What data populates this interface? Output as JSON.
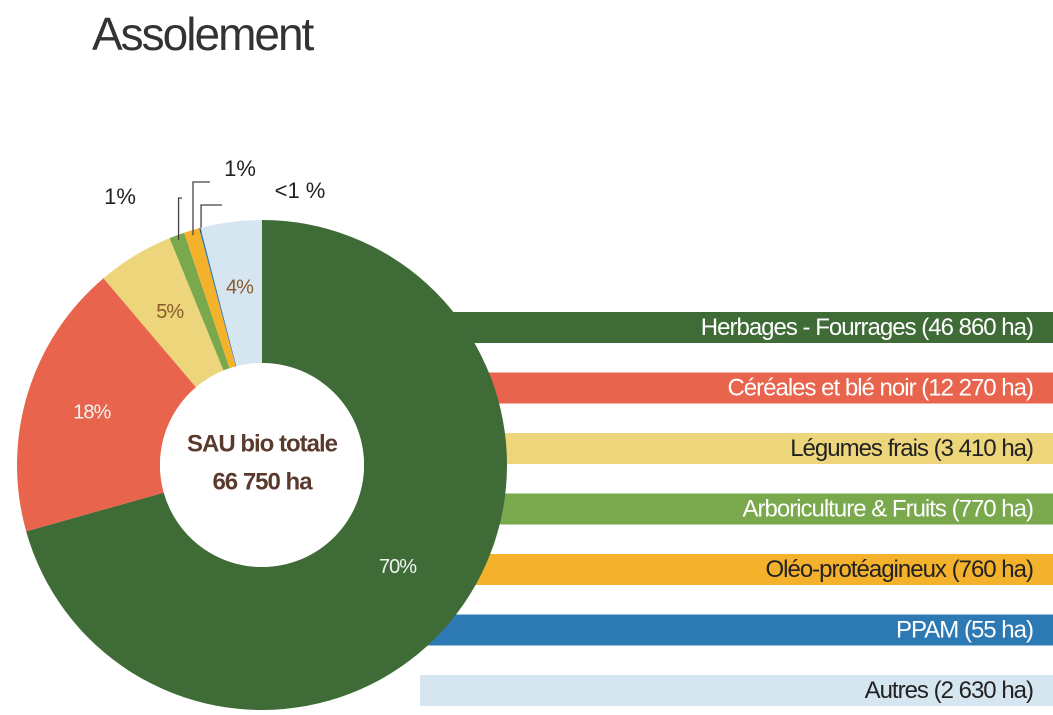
{
  "chart_data": {
    "type": "pie",
    "donut": true,
    "title": "Assolement",
    "center_label": [
      "SAU bio totale",
      "66 750 ha"
    ],
    "categories": [
      "Herbages - Fourrages (46 860 ha)",
      "Céréales et blé noir (12 270 ha)",
      "Légumes frais (3 410 ha)",
      "Arboriculture & Fruits (770 ha)",
      "Oléo-protéagineux (760 ha)",
      "PPAM (55 ha)",
      "Autres (2 630 ha)"
    ],
    "values": [
      70,
      18,
      5,
      1,
      1,
      0.1,
      4
    ],
    "value_labels": [
      "70%",
      "18%",
      "5%",
      "1%",
      "1%",
      "<1 %",
      "4%"
    ],
    "colors": [
      "#3f6b37",
      "#e8644d",
      "#ecd57a",
      "#7aa84c",
      "#f4b22c",
      "#2d79b3",
      "#d6e6f1"
    ]
  }
}
